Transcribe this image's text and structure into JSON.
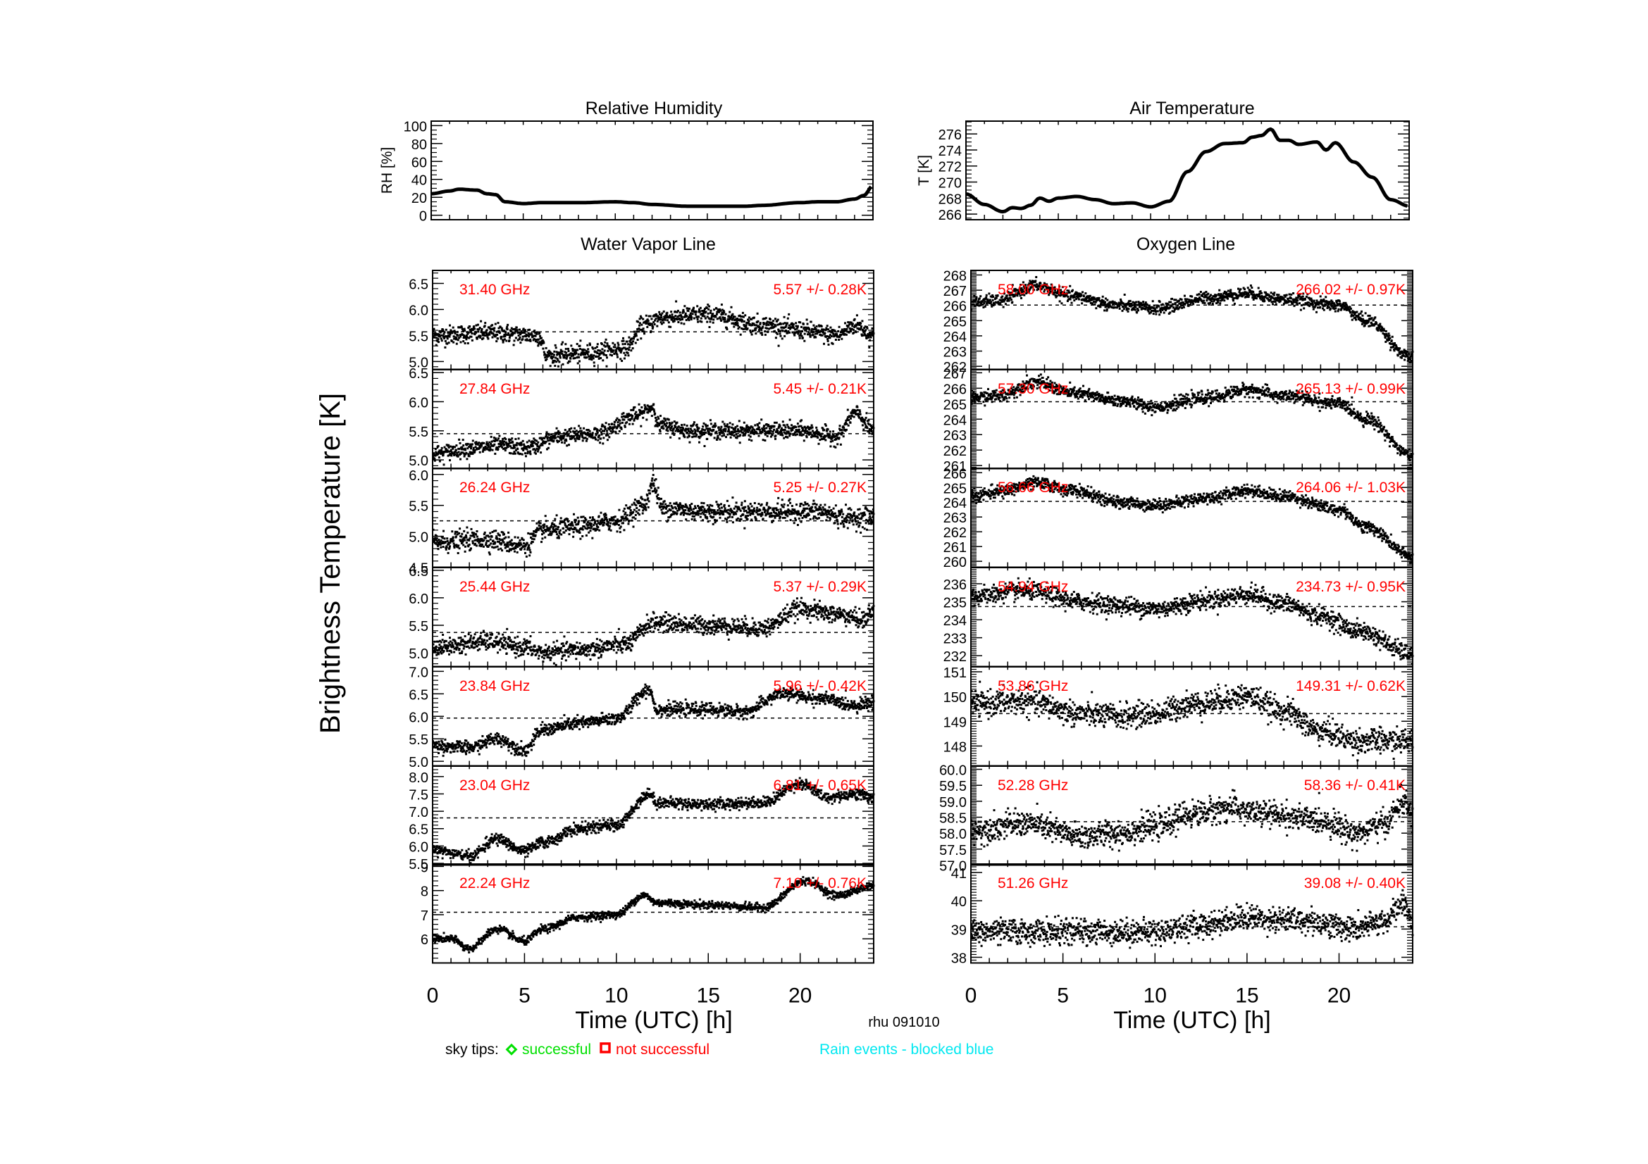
{
  "figure": {
    "station_label": "rhu 091010",
    "ylabel_main": "Brightness Temperature [K]",
    "legend": {
      "sky_tips_label": "sky tips:",
      "successful_label": "successful",
      "not_successful_label": "not successful",
      "rain_label": "Rain events - blocked blue",
      "colors": {
        "successful": "#00e000",
        "not_successful": "#ff0000",
        "rain": "#00e8f0",
        "channel_text": "#ff0000"
      }
    },
    "section_titles": {
      "water_vapor": "Water Vapor Line",
      "oxygen": "Oxygen Line"
    }
  },
  "chart_data": [
    {
      "id": "rh",
      "type": "line",
      "title": "Relative Humidity",
      "ylabel": "RH [%]",
      "xlim": [
        0,
        24
      ],
      "ylim": [
        -5,
        105
      ],
      "yticks": [
        0,
        20,
        40,
        60,
        80,
        100
      ],
      "x": [
        0,
        1,
        1.5,
        2.5,
        3,
        3.5,
        4,
        5,
        6,
        8,
        10,
        11,
        12,
        14,
        15,
        17,
        18,
        20,
        21,
        22,
        23,
        23.5,
        24
      ],
      "y": [
        24,
        27,
        29,
        28,
        24,
        23,
        15,
        13,
        14,
        14,
        15,
        14,
        12,
        10,
        10,
        10,
        11,
        14,
        15,
        15,
        18,
        22,
        33
      ]
    },
    {
      "id": "airtemp",
      "type": "line",
      "title": "Air Temperature",
      "ylabel": "T [K]",
      "xlim": [
        0,
        24
      ],
      "ylim": [
        265.3,
        277.6
      ],
      "yticks": [
        266,
        268,
        270,
        272,
        274,
        276
      ],
      "x": [
        0,
        1,
        2,
        2.5,
        3,
        3.5,
        4,
        4.5,
        5,
        6,
        7,
        8,
        9,
        10,
        11,
        12,
        13,
        14,
        15,
        15.5,
        16,
        16.5,
        17,
        17.5,
        18,
        19,
        19.5,
        20,
        21,
        22,
        23,
        24
      ],
      "y": [
        268.5,
        267.2,
        266.3,
        266.8,
        266.7,
        267.1,
        268.0,
        267.6,
        268.0,
        268.2,
        267.8,
        267.3,
        267.4,
        266.9,
        267.6,
        271.3,
        273.8,
        274.8,
        274.9,
        275.6,
        275.8,
        276.6,
        275.2,
        275.2,
        274.7,
        275.0,
        274.0,
        274.9,
        272.5,
        270.6,
        267.8,
        267.0
      ]
    },
    {
      "id": "wv",
      "type": "scatter",
      "group": "water_vapor",
      "xlabel": "Time (UTC) [h]",
      "xlim": [
        0,
        24
      ],
      "xticks": [
        0,
        5,
        10,
        15,
        20
      ],
      "panels": [
        {
          "channel": "31.40 GHz",
          "stats": "5.57 +/-  0.28K",
          "mean": 5.57,
          "ylim": [
            4.85,
            6.75
          ],
          "yticks": [
            5.0,
            5.5,
            6.0,
            6.5
          ],
          "tickfmt": 1,
          "noise": 0.09,
          "trend_x": [
            0,
            3,
            5.8,
            6.2,
            8,
            10.5,
            11.5,
            12.5,
            15,
            18,
            20,
            22,
            23,
            24
          ],
          "trend_y": [
            5.5,
            5.55,
            5.5,
            5.1,
            5.15,
            5.25,
            5.7,
            5.85,
            5.9,
            5.7,
            5.6,
            5.5,
            5.7,
            5.5
          ]
        },
        {
          "channel": "27.84 GHz",
          "stats": "5.45 +/-  0.21K",
          "mean": 5.45,
          "ylim": [
            4.85,
            6.55
          ],
          "yticks": [
            5.0,
            5.5,
            6.0,
            6.5
          ],
          "tickfmt": 1,
          "noise": 0.07,
          "trend_x": [
            0,
            2,
            4,
            5,
            7,
            9,
            11,
            12,
            12.3,
            14,
            16,
            20,
            22,
            23,
            24
          ],
          "trend_y": [
            5.1,
            5.2,
            5.25,
            5.2,
            5.4,
            5.45,
            5.75,
            5.9,
            5.6,
            5.5,
            5.5,
            5.5,
            5.4,
            5.8,
            5.5
          ]
        },
        {
          "channel": "26.24 GHz",
          "stats": "5.25 +/-  0.27K",
          "mean": 5.25,
          "ylim": [
            4.5,
            6.1
          ],
          "yticks": [
            4.5,
            5.0,
            5.5,
            6.0
          ],
          "tickfmt": 1,
          "noise": 0.08,
          "trend_x": [
            0,
            3,
            5,
            6,
            8,
            10,
            11.5,
            12,
            12.5,
            15,
            18,
            21,
            22.5,
            24
          ],
          "trend_y": [
            4.9,
            4.95,
            4.85,
            5.1,
            5.15,
            5.25,
            5.5,
            5.85,
            5.45,
            5.4,
            5.4,
            5.4,
            5.3,
            5.3
          ]
        },
        {
          "channel": "25.44 GHz",
          "stats": "5.37 +/-  0.29K",
          "mean": 5.37,
          "ylim": [
            4.75,
            6.55
          ],
          "yticks": [
            5.0,
            5.5,
            6.0,
            6.5
          ],
          "tickfmt": 1,
          "noise": 0.08,
          "trend_x": [
            0,
            3,
            5,
            6,
            8,
            10.5,
            12,
            15,
            18,
            20,
            22,
            23.5,
            24
          ],
          "trend_y": [
            5.1,
            5.2,
            5.1,
            5.0,
            5.05,
            5.15,
            5.55,
            5.5,
            5.45,
            5.8,
            5.7,
            5.6,
            5.8
          ]
        },
        {
          "channel": "23.84 GHz",
          "stats": "5.96 +/- 0.42K",
          "mean": 5.96,
          "ylim": [
            4.9,
            7.1
          ],
          "yticks": [
            5.0,
            5.5,
            6.0,
            6.5,
            7.0
          ],
          "tickfmt": 1,
          "noise": 0.07,
          "trend_x": [
            0,
            2,
            3.5,
            5,
            6,
            8,
            10,
            11.8,
            12.2,
            15,
            17,
            19,
            21,
            23,
            24
          ],
          "trend_y": [
            5.35,
            5.3,
            5.5,
            5.25,
            5.7,
            5.85,
            5.95,
            6.6,
            6.15,
            6.15,
            6.1,
            6.5,
            6.4,
            6.25,
            6.3
          ]
        },
        {
          "channel": "23.04 GHz",
          "stats": "6.81 +/-  0.65K",
          "mean": 6.81,
          "ylim": [
            5.45,
            8.3
          ],
          "yticks": [
            5.5,
            6.0,
            6.5,
            7.0,
            7.5,
            8.0
          ],
          "tickfmt": 1,
          "noise": 0.08,
          "trend_x": [
            0,
            2,
            3.5,
            5,
            6,
            8,
            10,
            11.8,
            12.2,
            15,
            18,
            20,
            21.5,
            23,
            24
          ],
          "trend_y": [
            5.9,
            5.7,
            6.2,
            5.85,
            6.1,
            6.5,
            6.6,
            7.5,
            7.25,
            7.2,
            7.25,
            7.8,
            7.4,
            7.5,
            7.4
          ]
        },
        {
          "channel": "22.24 GHz",
          "stats": "7.10 +/-  0.76K",
          "mean": 7.1,
          "ylim": [
            5.0,
            9.1
          ],
          "yticks": [
            6,
            7,
            8,
            9
          ],
          "tickfmt": 0,
          "noise": 0.08,
          "trend_x": [
            0,
            1,
            2,
            3.5,
            5,
            6,
            8,
            10,
            11.5,
            12.2,
            15,
            18,
            20.3,
            22,
            24
          ],
          "trend_y": [
            6.0,
            6.0,
            5.6,
            6.4,
            5.9,
            6.4,
            6.9,
            7.0,
            7.8,
            7.5,
            7.4,
            7.3,
            8.4,
            7.8,
            8.2
          ]
        }
      ]
    },
    {
      "id": "ox",
      "type": "scatter",
      "group": "oxygen",
      "xlabel": "Time (UTC) [h]",
      "xlim": [
        0,
        24
      ],
      "xticks": [
        0,
        5,
        10,
        15,
        20
      ],
      "panels": [
        {
          "channel": "58.00 GHz",
          "stats": "266.02 +/-  0.97K",
          "mean": 266.02,
          "ylim": [
            261.8,
            268.3
          ],
          "yticks": [
            262,
            263,
            264,
            265,
            266,
            267,
            268
          ],
          "tickfmt": 0,
          "noise": 0.2,
          "trend_x": [
            0,
            1.5,
            3.5,
            5.5,
            8,
            10,
            13,
            15,
            17,
            20,
            21.5,
            24
          ],
          "trend_y": [
            266.2,
            266.3,
            267.3,
            266.6,
            266.0,
            265.8,
            266.5,
            266.8,
            266.4,
            266.0,
            265.0,
            262.5
          ]
        },
        {
          "channel": "57.30 GHz",
          "stats": "265.13 +/-  0.99K",
          "mean": 265.13,
          "ylim": [
            260.8,
            267.2
          ],
          "yticks": [
            261,
            262,
            263,
            264,
            265,
            266,
            267
          ],
          "tickfmt": 0,
          "noise": 0.2,
          "trend_x": [
            0,
            1.5,
            3.5,
            5.5,
            8,
            10,
            13,
            15,
            17,
            20,
            21.5,
            24
          ],
          "trend_y": [
            265.4,
            265.5,
            266.4,
            265.7,
            265.2,
            264.8,
            265.4,
            265.9,
            265.5,
            265.0,
            264.0,
            261.6
          ]
        },
        {
          "channel": "56.66 GHz",
          "stats": "264.06 +/-  1.03K",
          "mean": 264.06,
          "ylim": [
            259.6,
            266.3
          ],
          "yticks": [
            260,
            261,
            262,
            263,
            264,
            265,
            266
          ],
          "tickfmt": 0,
          "noise": 0.2,
          "trend_x": [
            0,
            1.5,
            3.5,
            5.5,
            8,
            10,
            13,
            15,
            17,
            20,
            21.5,
            24
          ],
          "trend_y": [
            264.4,
            264.7,
            265.3,
            264.8,
            264.0,
            263.8,
            264.3,
            264.8,
            264.4,
            263.5,
            262.3,
            260.3
          ]
        },
        {
          "channel": "54.94 GHz",
          "stats": "234.73 +/-  0.95K",
          "mean": 234.73,
          "ylim": [
            231.4,
            236.9
          ],
          "yticks": [
            232,
            233,
            234,
            235,
            236
          ],
          "tickfmt": 0,
          "noise": 0.25,
          "trend_x": [
            0,
            3,
            6,
            8,
            10,
            13,
            15,
            17,
            19,
            21,
            24
          ],
          "trend_y": [
            235.3,
            235.6,
            235.0,
            234.8,
            234.6,
            235.1,
            235.4,
            234.9,
            234.2,
            233.4,
            232.1
          ]
        },
        {
          "channel": "53.86 GHz",
          "stats": "149.31 +/-  0.62K",
          "mean": 149.31,
          "ylim": [
            147.2,
            151.2
          ],
          "yticks": [
            148,
            149,
            150,
            151
          ],
          "tickfmt": 0,
          "noise": 0.25,
          "trend_x": [
            0,
            3,
            6,
            8,
            10,
            12,
            15,
            17,
            19,
            21,
            24
          ],
          "trend_y": [
            149.7,
            149.8,
            149.3,
            149.2,
            149.3,
            149.7,
            150.0,
            149.4,
            148.6,
            148.2,
            148.2
          ]
        },
        {
          "channel": "52.28 GHz",
          "stats": "58.36 +/-  0.41K",
          "mean": 58.36,
          "ylim": [
            57.0,
            60.1
          ],
          "yticks": [
            57.0,
            57.5,
            58.0,
            58.5,
            59.0,
            59.5,
            60.0
          ],
          "tickfmt": 1,
          "noise": 0.2,
          "trend_x": [
            0,
            3,
            6,
            8,
            10,
            12,
            14,
            16,
            19,
            21,
            22.5,
            23.5,
            24
          ],
          "trend_y": [
            58.1,
            58.3,
            57.9,
            58.0,
            58.2,
            58.6,
            58.8,
            58.6,
            58.4,
            58.0,
            58.3,
            59.0,
            58.5
          ]
        },
        {
          "channel": "51.26 GHz",
          "stats": "39.08 +/-  0.40K",
          "mean": 39.08,
          "ylim": [
            37.8,
            41.3
          ],
          "yticks": [
            38,
            39,
            40,
            41
          ],
          "tickfmt": 0,
          "noise": 0.22,
          "trend_x": [
            0,
            5,
            10,
            12,
            15,
            18,
            21,
            22.5,
            23.5,
            24
          ],
          "trend_y": [
            38.9,
            38.9,
            38.9,
            39.1,
            39.4,
            39.3,
            39.0,
            39.3,
            39.9,
            39.3
          ]
        }
      ]
    }
  ]
}
